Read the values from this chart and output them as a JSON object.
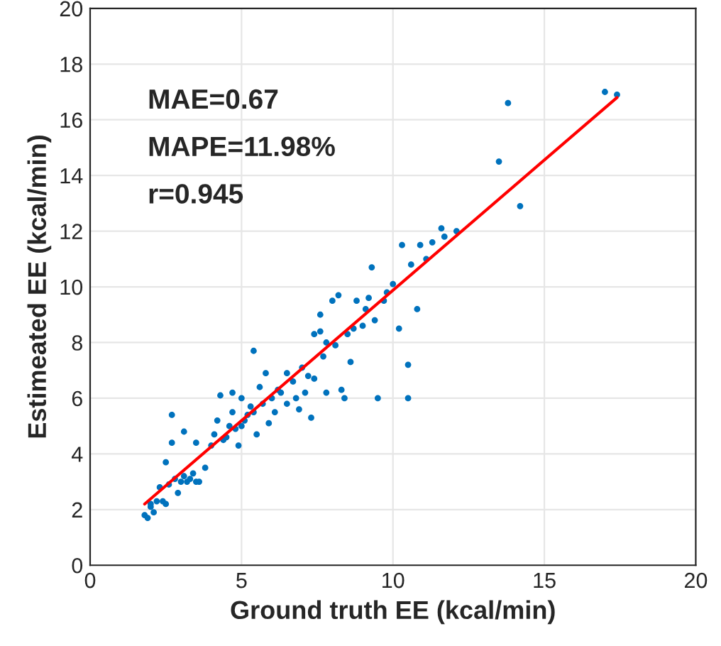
{
  "chart_data": {
    "type": "scatter",
    "xlabel": "Ground truth EE (kcal/min)",
    "ylabel": "Estimeated EE (kcal/min)",
    "xlim": [
      0,
      20
    ],
    "ylim": [
      0,
      20
    ],
    "xticks": [
      0,
      5,
      10,
      15,
      20
    ],
    "yticks": [
      0,
      2,
      4,
      6,
      8,
      10,
      12,
      14,
      16,
      18,
      20
    ],
    "grid": true,
    "marker": "circle",
    "annotations": [
      "MAE=0.67",
      "MAPE=11.98%",
      "r=0.945"
    ],
    "series": [
      {
        "color": "#0072bd",
        "x": [
          1.8,
          1.9,
          2.0,
          2.0,
          2.1,
          2.2,
          2.3,
          2.4,
          2.5,
          2.5,
          2.6,
          2.7,
          2.7,
          2.8,
          2.9,
          3.0,
          3.1,
          3.1,
          3.2,
          3.3,
          3.4,
          3.5,
          3.5,
          3.6,
          3.8,
          4.0,
          4.1,
          4.2,
          4.3,
          4.4,
          4.5,
          4.6,
          4.7,
          4.7,
          4.8,
          4.9,
          5.0,
          5.0,
          5.1,
          5.2,
          5.3,
          5.4,
          5.4,
          5.5,
          5.6,
          5.7,
          5.8,
          5.9,
          6.0,
          6.1,
          6.2,
          6.3,
          6.5,
          6.5,
          6.7,
          6.8,
          6.9,
          7.0,
          7.1,
          7.2,
          7.3,
          7.4,
          7.4,
          7.6,
          7.6,
          7.7,
          7.8,
          7.8,
          8.0,
          8.1,
          8.2,
          8.3,
          8.4,
          8.5,
          8.6,
          8.7,
          8.8,
          9.0,
          9.1,
          9.2,
          9.3,
          9.4,
          9.5,
          9.7,
          9.8,
          10.0,
          10.2,
          10.3,
          10.5,
          10.5,
          10.6,
          10.8,
          10.9,
          11.1,
          11.3,
          11.6,
          11.7,
          12.1,
          13.5,
          13.8,
          14.2,
          17.0,
          17.4
        ],
        "values": [
          1.8,
          1.7,
          2.1,
          2.2,
          1.9,
          2.3,
          2.8,
          2.3,
          2.2,
          3.7,
          2.9,
          4.4,
          5.4,
          3.1,
          2.6,
          3.0,
          4.8,
          3.2,
          3.0,
          3.1,
          3.3,
          4.4,
          3.0,
          3.0,
          3.5,
          4.3,
          4.7,
          5.2,
          6.1,
          4.5,
          4.6,
          5.0,
          5.5,
          6.2,
          4.9,
          4.3,
          6.0,
          5.0,
          5.2,
          5.4,
          5.7,
          7.7,
          5.5,
          4.7,
          6.4,
          5.8,
          6.9,
          5.1,
          6.0,
          5.5,
          6.3,
          6.2,
          6.9,
          5.8,
          6.6,
          6.0,
          5.6,
          7.1,
          6.2,
          6.8,
          5.3,
          6.7,
          8.3,
          8.4,
          9.0,
          7.5,
          6.2,
          8.0,
          9.5,
          7.9,
          9.7,
          6.3,
          6.0,
          8.3,
          7.3,
          8.5,
          9.5,
          8.6,
          9.2,
          9.6,
          10.7,
          8.8,
          6.0,
          9.5,
          9.8,
          10.1,
          8.5,
          11.5,
          7.2,
          6.0,
          10.8,
          9.2,
          11.5,
          11.0,
          11.6,
          12.1,
          11.8,
          12.0,
          14.5,
          16.6,
          12.9,
          17.0,
          16.9
        ]
      },
      {
        "type": "line",
        "color": "#ff0000",
        "line_style": "solid",
        "marker": "none",
        "x": [
          1.8,
          17.4
        ],
        "values": [
          2.2,
          16.8
        ]
      }
    ]
  }
}
